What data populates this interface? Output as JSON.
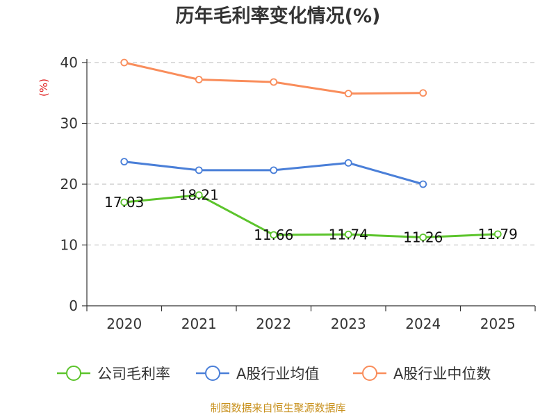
{
  "chart_data": {
    "type": "line",
    "title": "历年毛利率变化情况(%)",
    "ylabel": "(%)",
    "xlabel": "",
    "categories": [
      "2020",
      "2021",
      "2022",
      "2023",
      "2024",
      "2025"
    ],
    "ylim": [
      0,
      40
    ],
    "yticks": [
      0,
      10,
      20,
      30,
      40
    ],
    "grid": "horizontal-dashed",
    "legend": "bottom",
    "series": [
      {
        "name": "公司毛利率",
        "color": "#5cc42c",
        "values": [
          17.03,
          18.21,
          11.66,
          11.74,
          11.26,
          11.79
        ],
        "labels": [
          "17.03",
          "18.21",
          "11.66",
          "11.74",
          "11.26",
          "11.79"
        ]
      },
      {
        "name": "A股行业均值",
        "color": "#4a7fd8",
        "values": [
          23.7,
          22.3,
          22.3,
          23.5,
          20.0,
          null
        ]
      },
      {
        "name": "A股行业中位数",
        "color": "#f98d5b",
        "values": [
          40.0,
          37.2,
          36.8,
          34.9,
          35.0,
          null
        ]
      }
    ]
  },
  "footer": {
    "source": "制图数据来自恒生聚源数据库"
  }
}
